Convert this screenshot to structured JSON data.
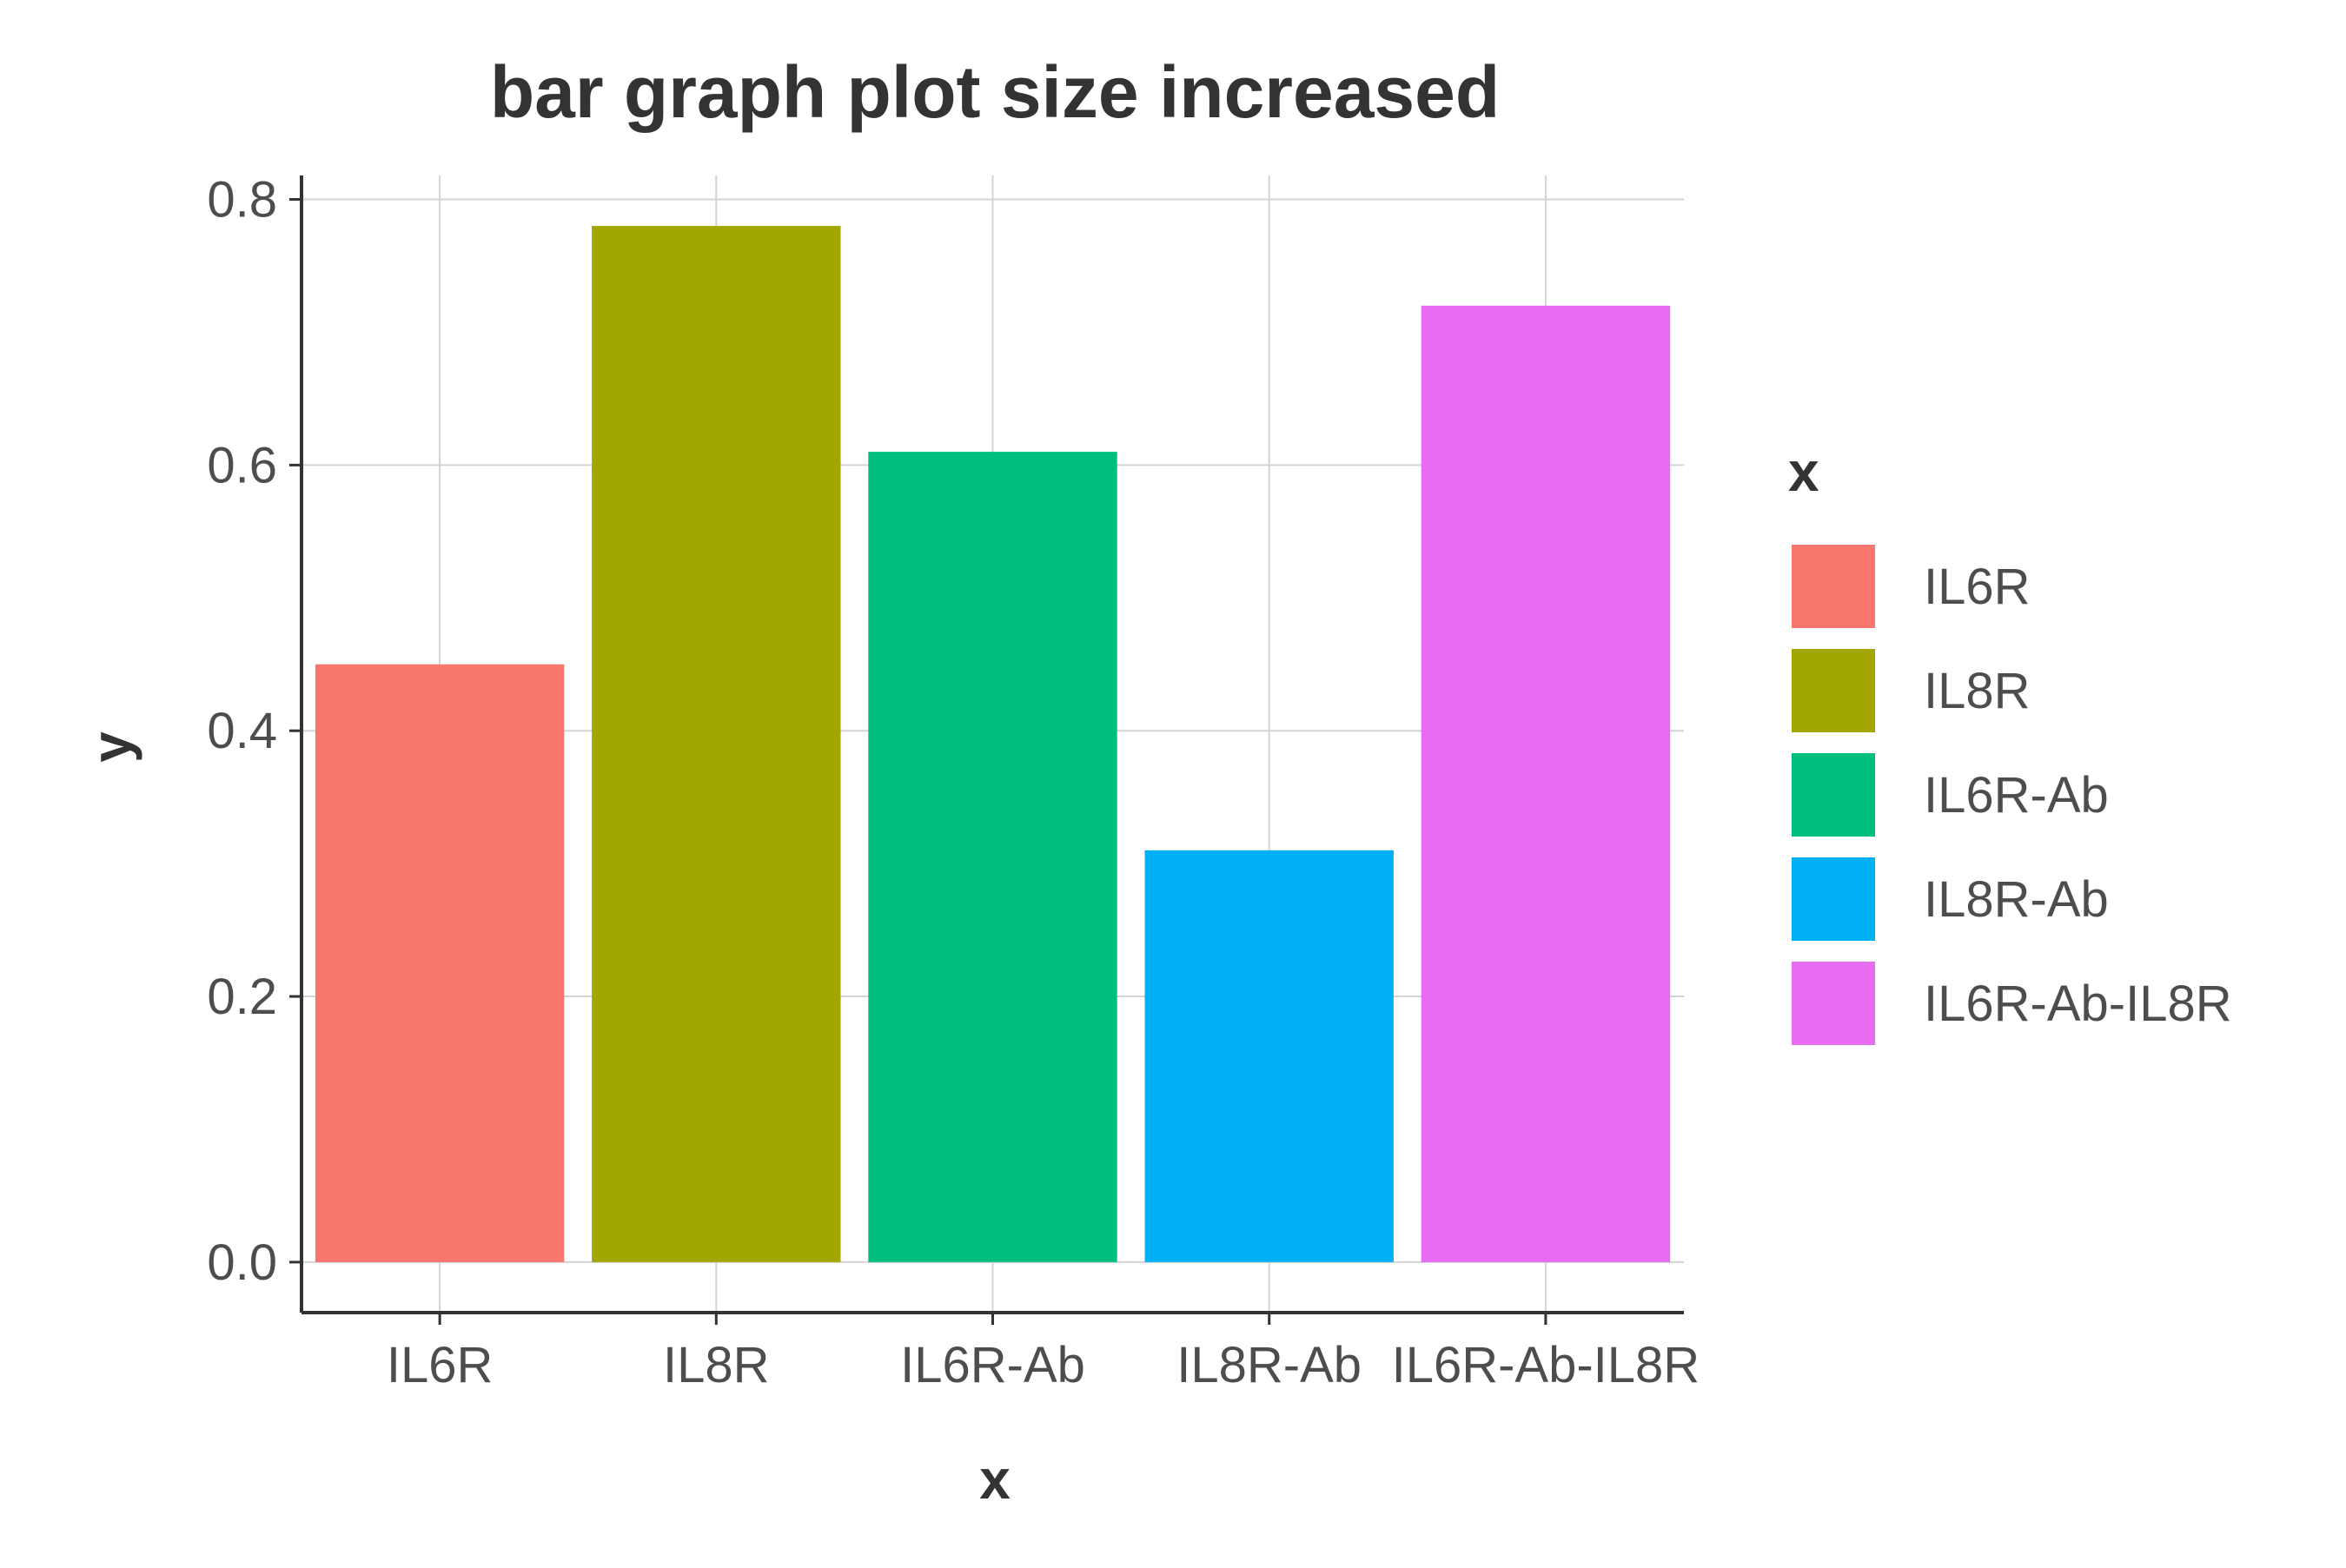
{
  "chart_data": {
    "type": "bar",
    "title": "bar graph plot size increased",
    "xlabel": "x",
    "ylabel": "y",
    "categories": [
      "IL6R",
      "IL8R",
      "IL6R-Ab",
      "IL8R-Ab",
      "IL6R-Ab-IL8R"
    ],
    "values": [
      0.45,
      0.78,
      0.61,
      0.31,
      0.72
    ],
    "colors": [
      "#F8766D",
      "#A3A500",
      "#00BF7D",
      "#00B0F6",
      "#E76BF3"
    ],
    "yticks": [
      "0.0",
      "0.2",
      "0.4",
      "0.6",
      "0.8"
    ],
    "ylim": [
      -0.038,
      0.818
    ],
    "grid": true,
    "legend": {
      "title": "x",
      "position": "right",
      "entries": [
        "IL6R",
        "IL8R",
        "IL6R-Ab",
        "IL8R-Ab",
        "IL6R-Ab-IL8R"
      ]
    }
  }
}
